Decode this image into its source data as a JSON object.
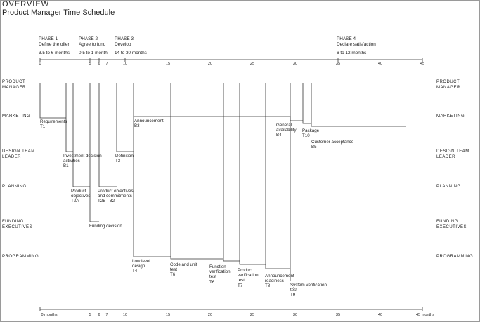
{
  "header": {
    "title": "OVERVIEW",
    "subtitle": "Product Manager Time Schedule"
  },
  "phases": [
    {
      "name": "PHASE 1",
      "desc": "Define the offer",
      "duration": "3.5 to 6 months"
    },
    {
      "name": "PHASE 2",
      "desc": "Agree to fund",
      "duration": "0.5 to 1 month"
    },
    {
      "name": "PHASE 3",
      "desc": "Develop",
      "duration": "14 to 30 months"
    },
    {
      "name": "PHASE 4",
      "desc": "Declare satisfaction",
      "duration": "6 to 12 months"
    }
  ],
  "top_axis": {
    "ticks": [
      "0",
      "5",
      "6",
      "7",
      "10",
      "15",
      "20",
      "25",
      "30",
      "35",
      "40",
      "45"
    ]
  },
  "bottom_axis": {
    "ticks": [
      "0 months",
      "5",
      "6",
      "7",
      "10",
      "15",
      "20",
      "25",
      "30",
      "35",
      "40",
      "45 months"
    ]
  },
  "roles": [
    "PRODUCT MANAGER",
    "MARKETING",
    "DESIGN TEAM LEADER",
    "PLANNING",
    "FUNDING EXECUTIVES",
    "PROGRAMMING"
  ],
  "tasks": {
    "requirements": {
      "name": "Requirements",
      "code": "T1"
    },
    "investment": {
      "name": "Investment decision activities",
      "code": "B1"
    },
    "product_obj": {
      "name": "Product objectives",
      "code": "T2A"
    },
    "funding": {
      "name": "Funding decision",
      "code": ""
    },
    "prod_obj_commit": {
      "name": "Product objectives and commitments",
      "code1": "T2B",
      "code2": "B2"
    },
    "definition": {
      "name": "Definition",
      "code": "T3"
    },
    "announcement": {
      "name": "Announcement",
      "code": "B3"
    },
    "low_level": {
      "name": "Low level design",
      "code": "T4"
    },
    "code_unit": {
      "name": "Code and unit test",
      "code": "T6"
    },
    "function_ver": {
      "name": "Function verification test",
      "code": "T6"
    },
    "product_ver": {
      "name": "Product verification test",
      "code": "T7"
    },
    "announce_ready": {
      "name": "Announcement readiness",
      "code": "T8"
    },
    "system_ver": {
      "name": "System verification test",
      "code": "T9"
    },
    "general_avail": {
      "name": "General availability",
      "code": "B4"
    },
    "package": {
      "name": "Package",
      "code": "T10"
    },
    "customer_accept": {
      "name": "Customer acceptance",
      "code": "B5"
    }
  }
}
